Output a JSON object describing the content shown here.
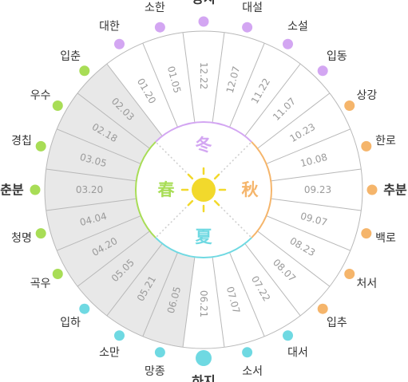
{
  "colors": {
    "winter": "#d3a6f2",
    "spring": "#a8dd56",
    "summer": "#6fd9e2",
    "autumn": "#f5b56b",
    "sun": "#f2d92c",
    "spring_shade": "#e8e8e8",
    "spoke": "#b8b8b8",
    "term_text": "#333333",
    "date_text": "#9a9a9a"
  },
  "seasons": {
    "winter": "冬",
    "spring": "春",
    "summer": "夏",
    "autumn": "秋"
  },
  "sun_icon": "sun-icon",
  "terms": [
    {
      "name": "동지",
      "date": "12.22",
      "season": "winter",
      "major": true
    },
    {
      "name": "소한",
      "date": "01.05",
      "season": "winter",
      "major": false
    },
    {
      "name": "대한",
      "date": "01.20",
      "season": "winter",
      "major": false
    },
    {
      "name": "입춘",
      "date": "02.03",
      "season": "spring",
      "major": false
    },
    {
      "name": "우수",
      "date": "02.18",
      "season": "spring",
      "major": false
    },
    {
      "name": "경칩",
      "date": "03.05",
      "season": "spring",
      "major": false
    },
    {
      "name": "춘분",
      "date": "03.20",
      "season": "spring",
      "major": true
    },
    {
      "name": "청명",
      "date": "04.04",
      "season": "spring",
      "major": false
    },
    {
      "name": "곡우",
      "date": "04.20",
      "season": "spring",
      "major": false
    },
    {
      "name": "입하",
      "date": "05.05",
      "season": "summer",
      "major": false
    },
    {
      "name": "소만",
      "date": "05.21",
      "season": "summer",
      "major": false
    },
    {
      "name": "망종",
      "date": "06.05",
      "season": "summer",
      "major": false
    },
    {
      "name": "하지",
      "date": "06.21",
      "season": "summer",
      "major": true
    },
    {
      "name": "소서",
      "date": "07.07",
      "season": "summer",
      "major": false
    },
    {
      "name": "대서",
      "date": "07.22",
      "season": "summer",
      "major": false
    },
    {
      "name": "입추",
      "date": "08.07",
      "season": "autumn",
      "major": false
    },
    {
      "name": "처서",
      "date": "08.23",
      "season": "autumn",
      "major": false
    },
    {
      "name": "백로",
      "date": "09.07",
      "season": "autumn",
      "major": false
    },
    {
      "name": "추분",
      "date": "09.23",
      "season": "autumn",
      "major": true
    },
    {
      "name": "한로",
      "date": "10.08",
      "season": "autumn",
      "major": false
    },
    {
      "name": "상강",
      "date": "10.23",
      "season": "autumn",
      "major": false
    },
    {
      "name": "입동",
      "date": "11.07",
      "season": "winter",
      "major": false
    },
    {
      "name": "소설",
      "date": "11.22",
      "season": "winter",
      "major": false
    },
    {
      "name": "대설",
      "date": "12.07",
      "season": "winter",
      "major": false
    }
  ]
}
